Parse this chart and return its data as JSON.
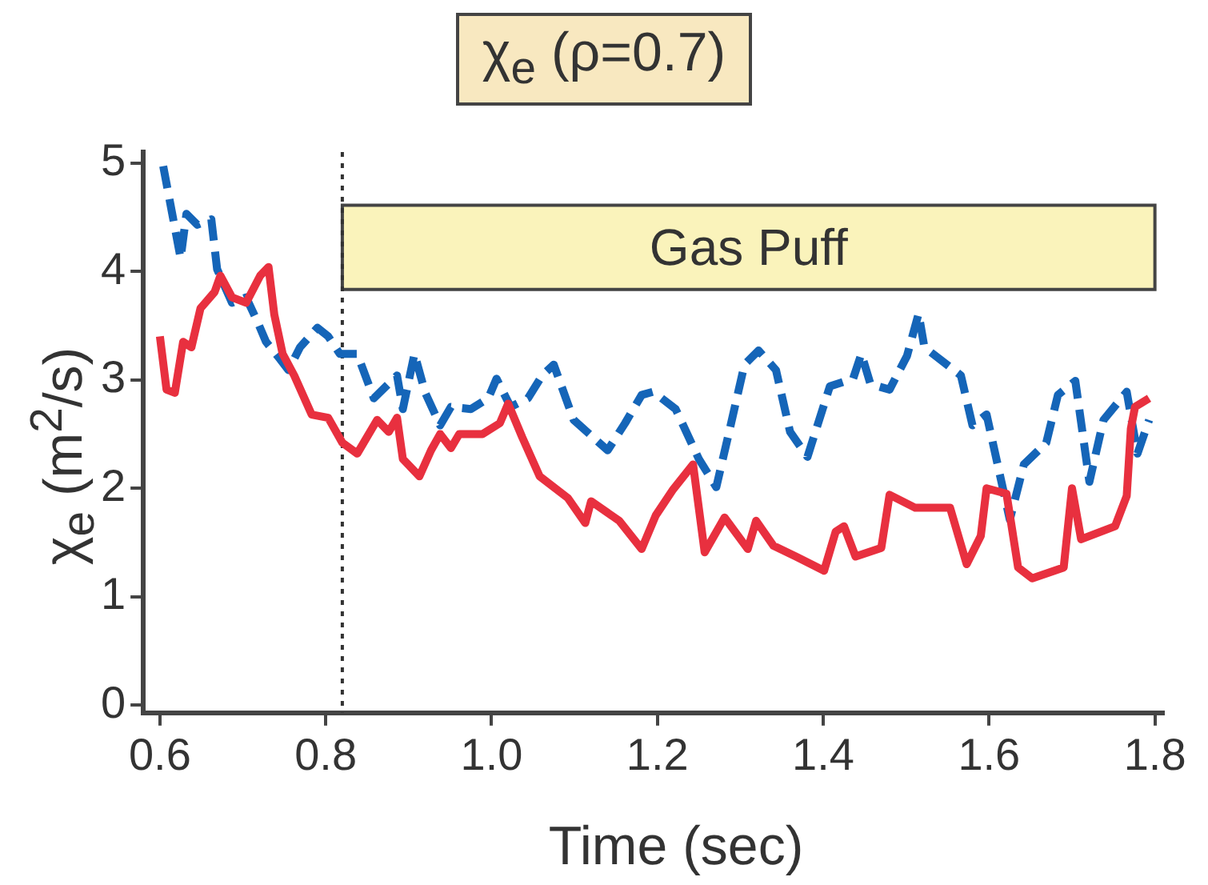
{
  "chart_data": {
    "type": "line",
    "title": "χ$_{e}$ (ρ=0.7)",
    "xlabel": "Time (sec)",
    "ylabel": "χ$_{e}$ (m$^{2}$/s)",
    "xlim": [
      0.58,
      1.81
    ],
    "ylim": [
      -0.07,
      5.1
    ],
    "xticks": [
      0.6,
      0.8,
      {
        "value": 1,
        "label": "1.0"
      },
      1.2,
      1.4,
      1.6,
      1.8
    ],
    "yticks": [
      0,
      1,
      2,
      3,
      4,
      5
    ],
    "grid": false,
    "legend": false,
    "marker": "none",
    "ref_lines": [
      {
        "axis": "x",
        "value": 0.82,
        "line_style": "dotted",
        "color": "#333333"
      }
    ],
    "bands": [
      {
        "axis": "x",
        "from": 0.82,
        "to": 1.8,
        "label": "Gas Puff",
        "color": "#faf3bb"
      }
    ],
    "series": [
      {
        "color": "#e8303f",
        "line_style": "solid",
        "x": [
          0.6,
          0.608,
          0.618,
          0.628,
          0.638,
          0.649,
          0.666,
          0.673,
          0.687,
          0.704,
          0.721,
          0.731,
          0.738,
          0.748,
          0.762,
          0.783,
          0.803,
          0.82,
          0.838,
          0.862,
          0.876,
          0.886,
          0.893,
          0.913,
          0.927,
          0.938,
          0.951,
          0.961,
          0.989,
          1.01,
          1.02,
          1.037,
          1.058,
          1.092,
          1.113,
          1.12,
          1.154,
          1.181,
          1.198,
          1.219,
          1.243,
          1.257,
          1.281,
          1.309,
          1.319,
          1.34,
          1.367,
          1.401,
          1.415,
          1.425,
          1.439,
          1.47,
          1.48,
          1.511,
          1.553,
          1.573,
          1.59,
          1.597,
          1.621,
          1.635,
          1.652,
          1.69,
          1.7,
          1.711,
          1.752,
          1.766,
          1.771,
          1.776,
          1.793
        ],
        "values": [
          3.4,
          2.91,
          2.88,
          3.35,
          3.3,
          3.66,
          3.81,
          3.96,
          3.76,
          3.71,
          3.96,
          4.04,
          3.6,
          3.24,
          3.04,
          2.68,
          2.65,
          2.42,
          2.32,
          2.63,
          2.52,
          2.65,
          2.27,
          2.11,
          2.35,
          2.5,
          2.37,
          2.5,
          2.5,
          2.6,
          2.78,
          2.47,
          2.11,
          1.91,
          1.68,
          1.88,
          1.7,
          1.44,
          1.75,
          1.99,
          2.22,
          1.41,
          1.73,
          1.44,
          1.7,
          1.47,
          1.37,
          1.24,
          1.6,
          1.65,
          1.37,
          1.45,
          1.94,
          1.82,
          1.82,
          1.3,
          1.56,
          2.0,
          1.95,
          1.27,
          1.17,
          1.27,
          2.0,
          1.53,
          1.65,
          1.93,
          2.55,
          2.75,
          2.83
        ]
      },
      {
        "color": "#1565b8",
        "line_style": "dashed",
        "x": [
          0.604,
          0.625,
          0.632,
          0.645,
          0.662,
          0.669,
          0.687,
          0.704,
          0.718,
          0.728,
          0.745,
          0.755,
          0.769,
          0.79,
          0.803,
          0.817,
          0.838,
          0.858,
          0.886,
          0.893,
          0.907,
          0.92,
          0.938,
          0.951,
          0.975,
          0.996,
          1.006,
          1.023,
          1.044,
          1.061,
          1.075,
          1.099,
          1.14,
          1.161,
          1.181,
          1.195,
          1.222,
          1.25,
          1.271,
          1.285,
          1.305,
          1.322,
          1.343,
          1.36,
          1.381,
          1.408,
          1.436,
          1.446,
          1.457,
          1.48,
          1.501,
          1.515,
          1.522,
          1.566,
          1.58,
          1.597,
          1.625,
          1.642,
          1.669,
          1.683,
          1.704,
          1.721,
          1.738,
          1.766,
          1.779,
          1.793
        ],
        "values": [
          4.97,
          4.12,
          4.53,
          4.43,
          4.48,
          4.02,
          3.71,
          3.76,
          3.53,
          3.35,
          3.19,
          3.09,
          3.3,
          3.48,
          3.4,
          3.24,
          3.24,
          2.83,
          3.04,
          2.73,
          3.24,
          2.88,
          2.58,
          2.75,
          2.73,
          2.83,
          3.01,
          2.75,
          2.83,
          3.04,
          3.14,
          2.63,
          2.35,
          2.6,
          2.86,
          2.89,
          2.73,
          2.27,
          2.01,
          2.47,
          3.14,
          3.27,
          3.09,
          2.52,
          2.29,
          2.94,
          3.01,
          3.24,
          2.96,
          2.91,
          3.22,
          3.61,
          3.3,
          3.04,
          2.58,
          2.68,
          1.71,
          2.22,
          2.42,
          2.86,
          2.99,
          2.06,
          2.63,
          2.89,
          2.32,
          2.63
        ]
      }
    ]
  }
}
